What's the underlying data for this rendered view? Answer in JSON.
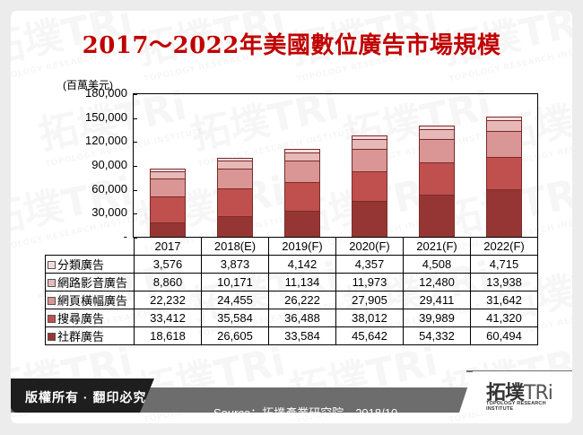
{
  "title": "2017～2022年美國數位廣告市場規模",
  "unit_label": "(百萬美元)",
  "y_axis": {
    "ticks": [
      "180,000",
      "150,000",
      "120,000",
      "90,000",
      "60,000",
      "30,000",
      "-"
    ]
  },
  "footer": {
    "copyright": "版權所有 · 翻印必究",
    "source": "Source：拓墣產業研究院，2018/10",
    "logo_main": "拓墣",
    "logo_tri": "TRi",
    "logo_sub": "TOPOLOGY RESEARCH INSTITUTE"
  },
  "colors": {
    "social": "#963634",
    "search": "#c0504d",
    "banner": "#d99694",
    "video": "#e6b9b8",
    "classified": "#f2dcdb",
    "title": "#c00000"
  },
  "chart_data": {
    "type": "bar",
    "stacked": true,
    "title": "2017～2022年美國數位廣告市場規模",
    "xlabel": "",
    "ylabel": "(百萬美元)",
    "ylim": [
      0,
      180000
    ],
    "yticks": [
      0,
      30000,
      60000,
      90000,
      120000,
      150000,
      180000
    ],
    "grid": false,
    "legend_position": "table-left",
    "categories": [
      "2017",
      "2018(E)",
      "2019(F)",
      "2020(F)",
      "2021(F)",
      "2022(F)"
    ],
    "series": [
      {
        "name": "社群廣告",
        "values": [
          18618,
          26605,
          33584,
          45642,
          54332,
          60494
        ],
        "color": "#963634"
      },
      {
        "name": "搜尋廣告",
        "values": [
          33412,
          35584,
          36488,
          38012,
          39989,
          41320
        ],
        "color": "#c0504d"
      },
      {
        "name": "網頁橫幅廣告",
        "values": [
          22232,
          24455,
          26222,
          27905,
          29411,
          31642
        ],
        "color": "#d99694"
      },
      {
        "name": "網路影音廣告",
        "values": [
          8860,
          10171,
          11134,
          11973,
          12480,
          13938
        ],
        "color": "#e6b9b8"
      },
      {
        "name": "分類廣告",
        "values": [
          3576,
          3873,
          4142,
          4357,
          4508,
          4715
        ],
        "color": "#f2dcdb"
      }
    ]
  },
  "table": {
    "header": [
      "2017",
      "2018(E)",
      "2019(F)",
      "2020(F)",
      "2021(F)",
      "2022(F)"
    ],
    "rows": [
      {
        "label": "分類廣告",
        "color": "#f2dcdb",
        "cells": [
          "3,576",
          "3,873",
          "4,142",
          "4,357",
          "4,508",
          "4,715"
        ]
      },
      {
        "label": "網路影音廣告",
        "color": "#e6b9b8",
        "cells": [
          "8,860",
          "10,171",
          "11,134",
          "11,973",
          "12,480",
          "13,938"
        ]
      },
      {
        "label": "網頁橫幅廣告",
        "color": "#d99694",
        "cells": [
          "22,232",
          "24,455",
          "26,222",
          "27,905",
          "29,411",
          "31,642"
        ]
      },
      {
        "label": "搜尋廣告",
        "color": "#c0504d",
        "cells": [
          "33,412",
          "35,584",
          "36,488",
          "38,012",
          "39,989",
          "41,320"
        ]
      },
      {
        "label": "社群廣告",
        "color": "#963634",
        "cells": [
          "18,618",
          "26,605",
          "33,584",
          "45,642",
          "54,332",
          "60,494"
        ]
      }
    ]
  }
}
